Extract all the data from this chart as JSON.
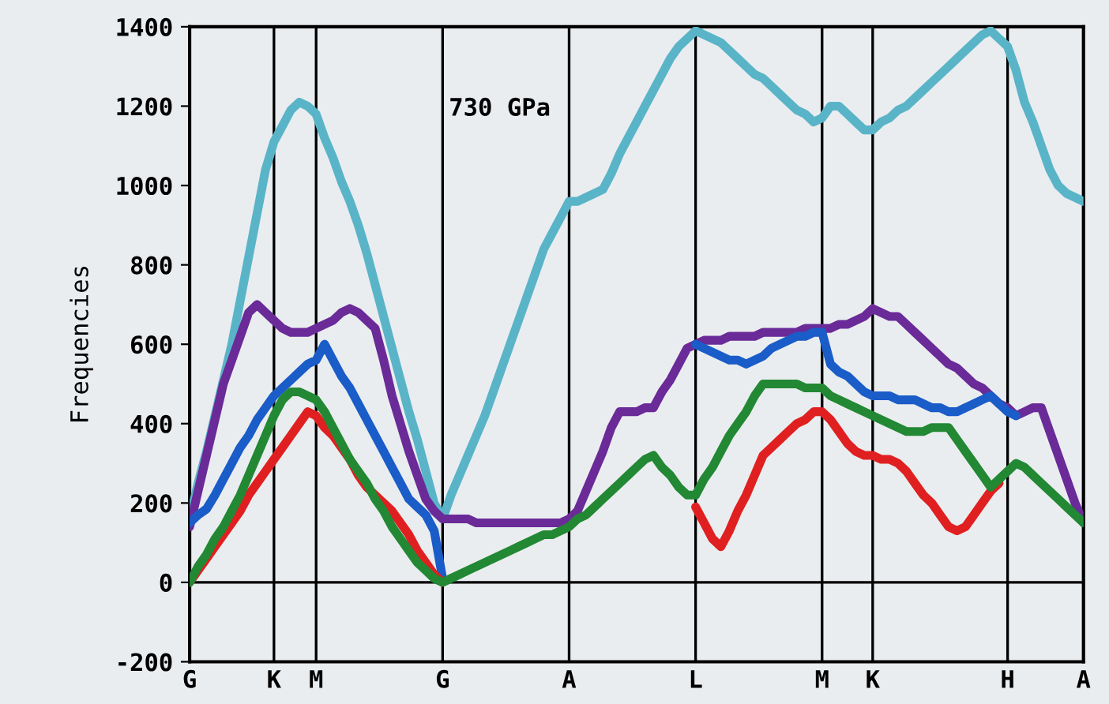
{
  "chart_data": {
    "type": "line",
    "ylabel": "Frequencies",
    "annotations": [
      "730 GPa"
    ],
    "categories": [
      "G",
      null,
      null,
      null,
      null,
      null,
      null,
      null,
      null,
      null,
      "K",
      null,
      null,
      null,
      null,
      "M",
      null,
      null,
      null,
      null,
      null,
      null,
      null,
      null,
      null,
      null,
      null,
      null,
      null,
      null,
      "G",
      null,
      null,
      null,
      null,
      null,
      null,
      null,
      null,
      null,
      null,
      null,
      null,
      null,
      null,
      "A",
      null,
      null,
      null,
      null,
      null,
      null,
      null,
      null,
      null,
      null,
      null,
      null,
      null,
      null,
      "L",
      null,
      null,
      null,
      null,
      null,
      null,
      null,
      null,
      null,
      null,
      null,
      null,
      null,
      null,
      "M",
      null,
      null,
      null,
      null,
      null,
      "K",
      null,
      null,
      null,
      null,
      null,
      null,
      null,
      null,
      null,
      null,
      null,
      null,
      null,
      null,
      null,
      "H",
      null,
      null,
      null,
      null,
      null,
      null,
      null,
      null,
      "A"
    ],
    "ylim": [
      -200,
      1400
    ],
    "yticks": [
      -200,
      0,
      200,
      400,
      600,
      800,
      1000,
      1200,
      1400
    ],
    "grid": "x",
    "legend": false,
    "marker": "none",
    "line_style": "solid",
    "ref_lines": [
      {
        "axis": "y",
        "value": 0,
        "color": "#000000"
      }
    ],
    "series": [
      {
        "color": "#5ab4c8",
        "values": [
          160,
          250,
          330,
          420,
          510,
          600,
          710,
          820,
          930,
          1040,
          1110,
          1150,
          1190,
          1210,
          1200,
          1180,
          1120,
          1070,
          1010,
          960,
          900,
          830,
          750,
          670,
          590,
          510,
          430,
          360,
          280,
          200,
          160,
          220,
          270,
          320,
          370,
          420,
          480,
          540,
          600,
          660,
          720,
          780,
          840,
          880,
          920,
          960,
          960,
          970,
          980,
          990,
          1030,
          1080,
          1120,
          1160,
          1200,
          1240,
          1280,
          1320,
          1350,
          1370,
          1390,
          1380,
          1370,
          1360,
          1340,
          1320,
          1300,
          1280,
          1270,
          1250,
          1230,
          1210,
          1190,
          1180,
          1160,
          1170,
          1200,
          1200,
          1180,
          1160,
          1140,
          1140,
          1160,
          1170,
          1190,
          1200,
          1220,
          1240,
          1260,
          1280,
          1300,
          1320,
          1340,
          1360,
          1380,
          1390,
          1370,
          1350,
          1290,
          1210,
          1160,
          1100,
          1040,
          1000,
          980,
          970,
          960
        ]
      },
      {
        "color": "#6a2a98",
        "values": [
          140,
          230,
          320,
          410,
          500,
          560,
          620,
          680,
          700,
          680,
          660,
          640,
          630,
          630,
          630,
          640,
          650,
          660,
          680,
          690,
          680,
          660,
          640,
          560,
          470,
          400,
          330,
          270,
          210,
          180,
          160,
          160,
          160,
          160,
          150,
          150,
          150,
          150,
          150,
          150,
          150,
          150,
          150,
          150,
          150,
          160,
          180,
          230,
          280,
          330,
          390,
          430,
          430,
          430,
          440,
          440,
          480,
          510,
          550,
          590,
          600,
          610,
          610,
          610,
          620,
          620,
          620,
          620,
          630,
          630,
          630,
          630,
          630,
          640,
          640,
          640,
          640,
          650,
          650,
          660,
          670,
          690,
          680,
          670,
          670,
          650,
          630,
          610,
          590,
          570,
          550,
          540,
          520,
          500,
          490,
          470,
          450,
          440,
          420,
          430,
          440,
          440,
          380,
          320,
          260,
          200,
          150
        ]
      },
      {
        "color": "#1a5cc8",
        "values": [
          150,
          170,
          185,
          220,
          260,
          300,
          340,
          370,
          410,
          440,
          470,
          490,
          510,
          530,
          550,
          560,
          600,
          560,
          520,
          490,
          450,
          410,
          370,
          330,
          290,
          250,
          210,
          190,
          170,
          130,
          10,
          null,
          null,
          null,
          null,
          null,
          null,
          null,
          null,
          null,
          null,
          null,
          null,
          null,
          null,
          null,
          null,
          null,
          null,
          null,
          null,
          null,
          null,
          null,
          null,
          null,
          null,
          null,
          null,
          null,
          600,
          590,
          580,
          570,
          560,
          560,
          550,
          560,
          570,
          590,
          600,
          610,
          620,
          620,
          630,
          630,
          550,
          530,
          520,
          500,
          480,
          470,
          470,
          470,
          460,
          460,
          460,
          450,
          440,
          440,
          430,
          430,
          440,
          450,
          460,
          470,
          450,
          430,
          420,
          null,
          null,
          null,
          null,
          null,
          null,
          null,
          null
        ]
      },
      {
        "color": "#e02020",
        "values": [
          0,
          30,
          60,
          90,
          120,
          150,
          180,
          220,
          250,
          280,
          310,
          340,
          370,
          400,
          430,
          420,
          390,
          370,
          340,
          310,
          270,
          240,
          220,
          200,
          180,
          150,
          120,
          80,
          50,
          20,
          0,
          null,
          null,
          null,
          null,
          null,
          null,
          null,
          null,
          null,
          null,
          null,
          null,
          null,
          null,
          null,
          null,
          null,
          null,
          null,
          null,
          null,
          null,
          null,
          null,
          null,
          null,
          null,
          null,
          null,
          190,
          150,
          110,
          90,
          130,
          180,
          220,
          270,
          320,
          340,
          360,
          380,
          400,
          410,
          430,
          430,
          410,
          380,
          350,
          330,
          320,
          320,
          310,
          310,
          300,
          280,
          250,
          220,
          200,
          170,
          140,
          130,
          140,
          170,
          200,
          230,
          250,
          null,
          null,
          null,
          null,
          null,
          null,
          null,
          null,
          null,
          null
        ]
      },
      {
        "color": "#228833",
        "values": [
          0,
          40,
          70,
          110,
          140,
          180,
          220,
          270,
          320,
          370,
          420,
          460,
          480,
          480,
          470,
          460,
          430,
          390,
          350,
          310,
          280,
          250,
          210,
          180,
          140,
          110,
          80,
          50,
          30,
          10,
          0,
          10,
          20,
          30,
          40,
          50,
          60,
          70,
          80,
          90,
          100,
          110,
          120,
          120,
          130,
          140,
          160,
          170,
          190,
          210,
          230,
          250,
          270,
          290,
          310,
          320,
          290,
          270,
          240,
          220,
          220,
          260,
          290,
          330,
          370,
          400,
          430,
          470,
          500,
          500,
          500,
          500,
          500,
          490,
          490,
          490,
          470,
          460,
          450,
          440,
          430,
          420,
          410,
          400,
          390,
          380,
          380,
          380,
          390,
          390,
          390,
          360,
          330,
          300,
          270,
          240,
          260,
          280,
          300,
          290,
          270,
          250,
          230,
          210,
          190,
          170,
          150
        ]
      }
    ]
  }
}
